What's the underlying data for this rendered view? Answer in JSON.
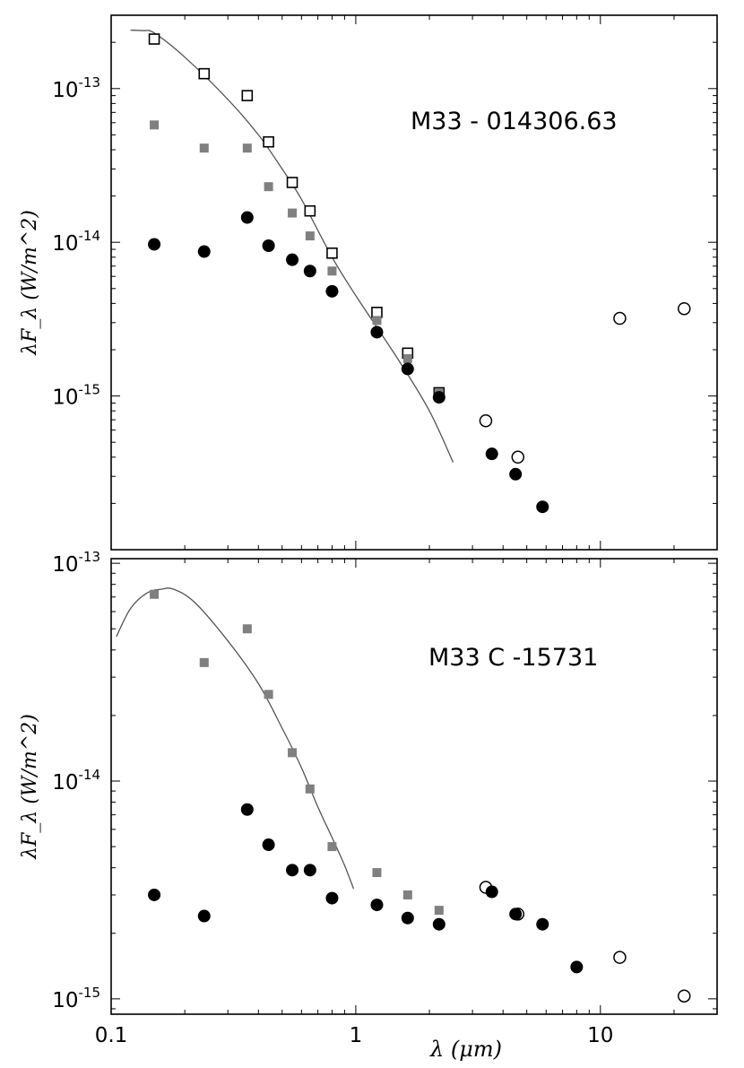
{
  "colors": {
    "observed_filled": "#000000",
    "dereddened_square": "#808080",
    "open_marker": "#000000",
    "model_curve": "#555555"
  },
  "x_axis": {
    "label": "λ (μm)",
    "scale": "log",
    "xlim": [
      0.1,
      30
    ],
    "tick_labels": [
      {
        "value": 0.1,
        "text": "0.1"
      },
      {
        "value": 1,
        "text": "1"
      },
      {
        "value": 10,
        "text": "10"
      }
    ]
  },
  "chart_data": [
    {
      "type": "scatter",
      "title": "M33 - 014306.63",
      "ylabel": "λF_λ (W/m^2)",
      "xscale": "log",
      "yscale": "log",
      "xlim": [
        0.1,
        30
      ],
      "ylim": [
        1e-16,
        3e-13
      ],
      "y_tick_labels": [
        {
          "value": 1e-13,
          "base": "10",
          "exp": "-13"
        },
        {
          "value": 1e-14,
          "base": "10",
          "exp": "-14"
        },
        {
          "value": 1e-15,
          "base": "10",
          "exp": "-15"
        }
      ],
      "series": [
        {
          "name": "open squares",
          "marker": "square-open",
          "points": [
            [
              0.15,
              2.1e-13
            ],
            [
              0.24,
              1.25e-13
            ],
            [
              0.36,
              9e-14
            ],
            [
              0.44,
              4.5e-14
            ],
            [
              0.55,
              2.45e-14
            ],
            [
              0.65,
              1.6e-14
            ],
            [
              0.8,
              8.5e-15
            ],
            [
              1.22,
              3.5e-15
            ],
            [
              1.63,
              1.9e-15
            ],
            [
              2.19,
              1.05e-15
            ]
          ]
        },
        {
          "name": "grey squares",
          "marker": "square-filled-grey",
          "points": [
            [
              0.15,
              5.8e-14
            ],
            [
              0.24,
              4.1e-14
            ],
            [
              0.36,
              4.1e-14
            ],
            [
              0.44,
              2.3e-14
            ],
            [
              0.55,
              1.55e-14
            ],
            [
              0.65,
              1.1e-14
            ],
            [
              0.8,
              6.5e-15
            ],
            [
              1.22,
              3.1e-15
            ],
            [
              1.63,
              1.75e-15
            ],
            [
              2.19,
              1.05e-15
            ]
          ]
        },
        {
          "name": "filled circles",
          "marker": "circle-filled",
          "points": [
            [
              0.15,
              9.7e-15
            ],
            [
              0.24,
              8.7e-15
            ],
            [
              0.36,
              1.45e-14
            ],
            [
              0.44,
              9.5e-15
            ],
            [
              0.55,
              7.7e-15
            ],
            [
              0.65,
              6.5e-15
            ],
            [
              0.8,
              4.8e-15
            ],
            [
              1.22,
              2.6e-15
            ],
            [
              1.63,
              1.5e-15
            ],
            [
              2.19,
              9.8e-16
            ],
            [
              3.6,
              4.2e-16
            ],
            [
              4.5,
              3.1e-16
            ],
            [
              5.8,
              1.9e-16
            ]
          ]
        },
        {
          "name": "open circles",
          "marker": "circle-open",
          "points": [
            [
              3.4,
              6.9e-16
            ],
            [
              4.6,
              4e-16
            ],
            [
              12,
              3.2e-15
            ],
            [
              22,
              3.7e-15
            ]
          ]
        }
      ],
      "model_curve": {
        "points": [
          [
            0.12,
            2.4e-13
          ],
          [
            0.135,
            2.38e-13
          ],
          [
            0.15,
            2.3e-13
          ],
          [
            0.2,
            1.6e-13
          ],
          [
            0.3,
            8.5e-14
          ],
          [
            0.4,
            5e-14
          ],
          [
            0.5,
            3e-14
          ],
          [
            0.6,
            1.9e-14
          ],
          [
            0.8,
            8e-15
          ],
          [
            1.0,
            4.5e-15
          ],
          [
            1.5,
            1.7e-15
          ],
          [
            2.0,
            8e-16
          ],
          [
            2.5,
            3.7e-16
          ]
        ]
      }
    },
    {
      "type": "scatter",
      "title": "M33 C -15731",
      "ylabel": "λF_λ (W/m^2)",
      "xscale": "log",
      "yscale": "log",
      "xlim": [
        0.1,
        30
      ],
      "ylim": [
        8.5e-16,
        1.05e-13
      ],
      "y_tick_labels": [
        {
          "value": 1e-13,
          "base": "10",
          "exp": "-13"
        },
        {
          "value": 1e-14,
          "base": "10",
          "exp": "-14"
        },
        {
          "value": 1e-15,
          "base": "10",
          "exp": "-15"
        }
      ],
      "series": [
        {
          "name": "grey squares",
          "marker": "square-filled-grey",
          "points": [
            [
              0.15,
              7.2e-14
            ],
            [
              0.24,
              3.5e-14
            ],
            [
              0.36,
              5e-14
            ],
            [
              0.44,
              2.5e-14
            ],
            [
              0.55,
              1.35e-14
            ],
            [
              0.65,
              9.2e-15
            ],
            [
              0.8,
              5e-15
            ],
            [
              1.22,
              3.8e-15
            ],
            [
              1.63,
              3e-15
            ],
            [
              2.19,
              2.55e-15
            ]
          ]
        },
        {
          "name": "filled circles",
          "marker": "circle-filled",
          "points": [
            [
              0.15,
              3e-15
            ],
            [
              0.24,
              2.4e-15
            ],
            [
              0.36,
              7.4e-15
            ],
            [
              0.44,
              5.1e-15
            ],
            [
              0.55,
              3.9e-15
            ],
            [
              0.65,
              3.9e-15
            ],
            [
              0.8,
              2.9e-15
            ],
            [
              1.22,
              2.7e-15
            ],
            [
              1.63,
              2.35e-15
            ],
            [
              2.19,
              2.2e-15
            ],
            [
              3.6,
              3.1e-15
            ],
            [
              4.5,
              2.45e-15
            ],
            [
              5.8,
              2.2e-15
            ],
            [
              8.0,
              1.4e-15
            ]
          ]
        },
        {
          "name": "open circles",
          "marker": "circle-open",
          "points": [
            [
              3.4,
              3.25e-15
            ],
            [
              4.6,
              2.45e-15
            ],
            [
              12,
              1.55e-15
            ],
            [
              22,
              1.03e-15
            ]
          ]
        }
      ],
      "model_curve": {
        "points": [
          [
            0.105,
            4.6e-14
          ],
          [
            0.12,
            6.2e-14
          ],
          [
            0.14,
            7.3e-14
          ],
          [
            0.16,
            7.6e-14
          ],
          [
            0.18,
            7.6e-14
          ],
          [
            0.22,
            6.6e-14
          ],
          [
            0.3,
            4.4e-14
          ],
          [
            0.4,
            2.8e-14
          ],
          [
            0.5,
            1.75e-14
          ],
          [
            0.6,
            1.15e-14
          ],
          [
            0.7,
            7.6e-15
          ],
          [
            0.8,
            5.5e-15
          ],
          [
            0.9,
            4.1e-15
          ],
          [
            0.98,
            3.2e-15
          ]
        ]
      }
    }
  ]
}
